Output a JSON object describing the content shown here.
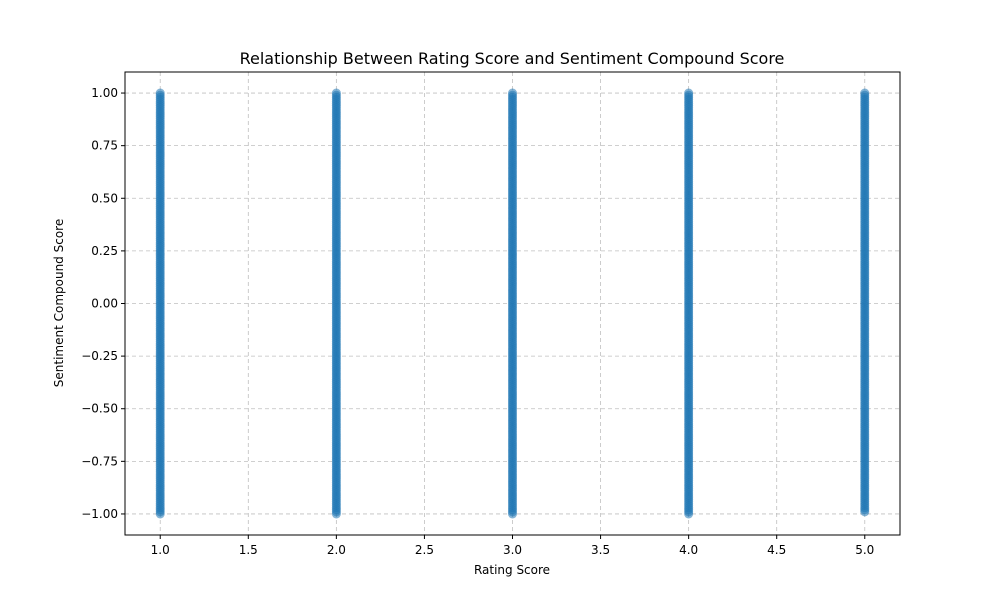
{
  "chart_data": {
    "type": "scatter",
    "title": "Relationship Between Rating Score and Sentiment Compound Score",
    "xlabel": "Rating Score",
    "ylabel": "Sentiment Compound Score",
    "xlim": [
      0.8,
      5.2
    ],
    "ylim": [
      -1.1,
      1.1
    ],
    "xticks": [
      1.0,
      1.5,
      2.0,
      2.5,
      3.0,
      3.5,
      4.0,
      4.5,
      5.0
    ],
    "xtick_labels": [
      "1.0",
      "1.5",
      "2.0",
      "2.5",
      "3.0",
      "3.5",
      "4.0",
      "4.5",
      "5.0"
    ],
    "yticks": [
      1.0,
      0.75,
      0.5,
      0.25,
      0.0,
      -0.25,
      -0.5,
      -0.75,
      -1.0
    ],
    "ytick_labels": [
      "1.00",
      "0.75",
      "0.50",
      "0.25",
      "0.00",
      "−0.25",
      "−0.50",
      "−0.75",
      "−1.00"
    ],
    "grid": true,
    "marker_color": "#1f77b4",
    "series": [
      {
        "x_values": [
          1,
          2,
          3,
          4,
          5
        ],
        "y_range_per_x": [
          [
            -1.0,
            1.0
          ],
          [
            -1.0,
            1.0
          ],
          [
            -1.0,
            1.0
          ],
          [
            -1.0,
            1.0
          ],
          [
            -0.99,
            1.0
          ]
        ],
        "y_step": 0.01
      }
    ]
  }
}
